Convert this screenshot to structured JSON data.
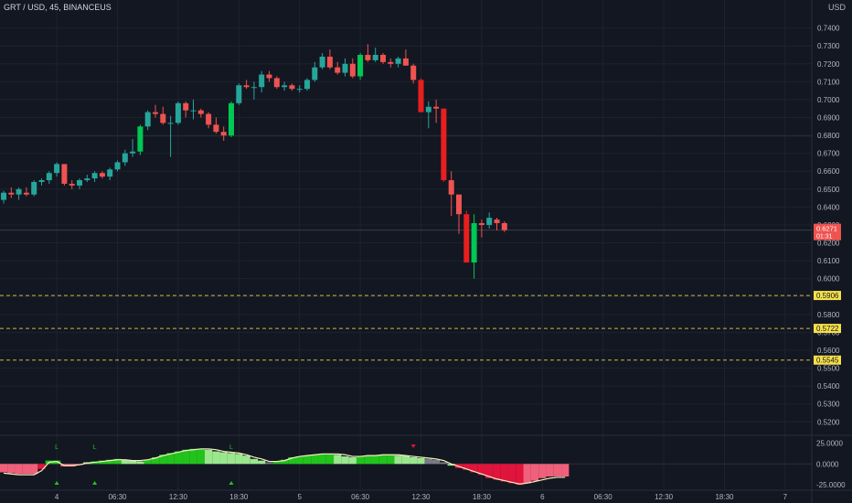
{
  "header": {
    "title": "GRT / USD, 45, BINANCEUS",
    "currency": "USD"
  },
  "colors": {
    "background": "#131722",
    "grid": "#1e222d",
    "text": "#b2b5be",
    "up": "#26a69a",
    "down": "#ef5350",
    "up_strong": "#00c853",
    "down_strong": "#e91e1e",
    "level_line": "#f0e442",
    "level_label_bg": "#f5e04a",
    "osc_green": "#22c41c",
    "osc_light_green": "#9be78e",
    "osc_gray": "#787b86",
    "osc_red": "#e0143c",
    "osc_pink": "#f0607a",
    "osc_line": "#f4efbd"
  },
  "chart_data": {
    "type": "candlestick",
    "y_ticks": [
      "0.7400",
      "0.7300",
      "0.7200",
      "0.7100",
      "0.7000",
      "0.6900",
      "0.6800",
      "0.6700",
      "0.6600",
      "0.6500",
      "0.6400",
      "0.6300",
      "0.6200",
      "0.6100",
      "0.6000",
      "0.5900",
      "0.5800",
      "0.5700",
      "0.5600",
      "0.5500",
      "0.5400",
      "0.5300",
      "0.5200"
    ],
    "ylim": [
      0.5135,
      0.7485
    ],
    "x_ticks": [
      {
        "label": "4",
        "bar": 7
      },
      {
        "label": "06:30",
        "bar": 15
      },
      {
        "label": "12:30",
        "bar": 23
      },
      {
        "label": "18:30",
        "bar": 31
      },
      {
        "label": "5",
        "bar": 39
      },
      {
        "label": "06:30",
        "bar": 47
      },
      {
        "label": "12:30",
        "bar": 55
      },
      {
        "label": "18:30",
        "bar": 63
      },
      {
        "label": "6",
        "bar": 71
      },
      {
        "label": "06:30",
        "bar": 79
      },
      {
        "label": "12:30",
        "bar": 87
      },
      {
        "label": "18:30",
        "bar": 95
      },
      {
        "label": "7",
        "bar": 103
      }
    ],
    "last_price": {
      "value": 0.6271,
      "label": "0.6271",
      "countdown": "01:31"
    },
    "levels": [
      {
        "value": 0.5906,
        "label": "0.5906"
      },
      {
        "value": 0.5722,
        "label": "0.5722"
      },
      {
        "value": 0.5545,
        "label": "0.5545"
      }
    ],
    "candles": [
      [
        0.644,
        0.649,
        0.642,
        0.648
      ],
      [
        0.648,
        0.651,
        0.645,
        0.647
      ],
      [
        0.647,
        0.651,
        0.644,
        0.65
      ],
      [
        0.648,
        0.651,
        0.646,
        0.647
      ],
      [
        0.647,
        0.655,
        0.646,
        0.654
      ],
      [
        0.654,
        0.656,
        0.652,
        0.655
      ],
      [
        0.655,
        0.66,
        0.653,
        0.659
      ],
      [
        0.659,
        0.665,
        0.657,
        0.664
      ],
      [
        0.664,
        0.664,
        0.652,
        0.653
      ],
      [
        0.653,
        0.655,
        0.65,
        0.652
      ],
      [
        0.652,
        0.656,
        0.65,
        0.655
      ],
      [
        0.655,
        0.658,
        0.654,
        0.656
      ],
      [
        0.656,
        0.66,
        0.654,
        0.659
      ],
      [
        0.659,
        0.66,
        0.656,
        0.657
      ],
      [
        0.657,
        0.662,
        0.655,
        0.661
      ],
      [
        0.661,
        0.666,
        0.66,
        0.665
      ],
      [
        0.665,
        0.672,
        0.663,
        0.67
      ],
      [
        0.67,
        0.678,
        0.668,
        0.671
      ],
      [
        0.671,
        0.686,
        0.669,
        0.685
      ],
      [
        0.685,
        0.694,
        0.683,
        0.693
      ],
      [
        0.693,
        0.697,
        0.69,
        0.692
      ],
      [
        0.692,
        0.696,
        0.686,
        0.687
      ],
      [
        0.687,
        0.691,
        0.668,
        0.687
      ],
      [
        0.687,
        0.699,
        0.686,
        0.698
      ],
      [
        0.698,
        0.699,
        0.69,
        0.694
      ],
      [
        0.694,
        0.7,
        0.689,
        0.694
      ],
      [
        0.694,
        0.695,
        0.69,
        0.692
      ],
      [
        0.692,
        0.693,
        0.684,
        0.686
      ],
      [
        0.686,
        0.69,
        0.681,
        0.682
      ],
      [
        0.682,
        0.685,
        0.677,
        0.68
      ],
      [
        0.68,
        0.699,
        0.679,
        0.698
      ],
      [
        0.698,
        0.709,
        0.697,
        0.708
      ],
      [
        0.708,
        0.711,
        0.706,
        0.707
      ],
      [
        0.707,
        0.71,
        0.7,
        0.707
      ],
      [
        0.707,
        0.716,
        0.704,
        0.714
      ],
      [
        0.714,
        0.716,
        0.71,
        0.712
      ],
      [
        0.712,
        0.713,
        0.706,
        0.707
      ],
      [
        0.707,
        0.71,
        0.705,
        0.708
      ],
      [
        0.708,
        0.709,
        0.705,
        0.706
      ],
      [
        0.706,
        0.708,
        0.704,
        0.706
      ],
      [
        0.706,
        0.712,
        0.705,
        0.711
      ],
      [
        0.711,
        0.721,
        0.71,
        0.718
      ],
      [
        0.718,
        0.726,
        0.717,
        0.724
      ],
      [
        0.724,
        0.728,
        0.717,
        0.718
      ],
      [
        0.718,
        0.721,
        0.714,
        0.715
      ],
      [
        0.715,
        0.723,
        0.713,
        0.72
      ],
      [
        0.72,
        0.723,
        0.712,
        0.713
      ],
      [
        0.713,
        0.726,
        0.711,
        0.725
      ],
      [
        0.725,
        0.731,
        0.721,
        0.722
      ],
      [
        0.722,
        0.729,
        0.721,
        0.725
      ],
      [
        0.725,
        0.726,
        0.72,
        0.721
      ],
      [
        0.721,
        0.723,
        0.718,
        0.72
      ],
      [
        0.72,
        0.724,
        0.718,
        0.723
      ],
      [
        0.723,
        0.728,
        0.719,
        0.719
      ],
      [
        0.719,
        0.72,
        0.709,
        0.711
      ],
      [
        0.711,
        0.712,
        0.693,
        0.693
      ],
      [
        0.693,
        0.699,
        0.684,
        0.696
      ],
      [
        0.696,
        0.7,
        0.687,
        0.695
      ],
      [
        0.695,
        0.695,
        0.654,
        0.655
      ],
      [
        0.655,
        0.66,
        0.635,
        0.647
      ],
      [
        0.647,
        0.647,
        0.625,
        0.636
      ],
      [
        0.636,
        0.638,
        0.609,
        0.609
      ],
      [
        0.609,
        0.636,
        0.6,
        0.631
      ],
      [
        0.631,
        0.633,
        0.623,
        0.63
      ],
      [
        0.63,
        0.637,
        0.628,
        0.634
      ],
      [
        0.633,
        0.634,
        0.627,
        0.631
      ],
      [
        0.631,
        0.632,
        0.626,
        0.6271
      ]
    ],
    "oscillator": {
      "ylim": [
        -27,
        32
      ],
      "y_ticks": [
        "25.0000",
        "0.0000",
        "-25.0000"
      ],
      "values": [
        -10,
        -11,
        -12,
        -12,
        -12,
        -6,
        4,
        4,
        -3,
        -3,
        -1,
        2,
        3,
        4,
        5,
        6,
        5,
        4,
        3,
        5,
        8,
        11,
        13,
        15,
        17,
        18,
        18,
        17,
        15,
        14,
        13,
        12,
        10,
        6,
        4,
        2,
        3,
        5,
        8,
        9,
        10,
        11,
        12,
        12,
        11,
        9,
        8,
        9,
        10,
        10,
        11,
        11,
        10,
        10,
        8,
        7,
        6,
        5,
        2,
        -2,
        -5,
        -7,
        -10,
        -13,
        -17,
        -19,
        -21,
        -23,
        -25,
        -23,
        -20,
        -17,
        -15,
        -15,
        -15
      ],
      "line": [
        -11,
        -12,
        -13,
        -13,
        -13,
        -8,
        2,
        3,
        -2,
        -2,
        -1,
        1,
        2,
        3,
        4,
        5,
        5,
        4,
        4,
        5,
        7,
        10,
        12,
        14,
        16,
        17,
        18,
        18,
        17,
        15,
        14,
        13,
        11,
        8,
        6,
        3,
        3,
        4,
        7,
        9,
        10,
        11,
        12,
        12,
        12,
        11,
        9,
        9,
        10,
        10,
        11,
        11,
        11,
        10,
        9,
        8,
        7,
        6,
        4,
        0,
        -3,
        -6,
        -9,
        -12,
        -15,
        -18,
        -20,
        -22,
        -24,
        -23,
        -21,
        -19,
        -17,
        -16,
        -16
      ],
      "colors": [
        "pink",
        "pink",
        "pink",
        "pink",
        "pink",
        "red",
        "green",
        "green",
        "pink",
        "pink",
        "pink",
        "light",
        "green",
        "green",
        "green",
        "green",
        "light",
        "light",
        "light",
        "green",
        "green",
        "green",
        "green",
        "green",
        "green",
        "green",
        "green",
        "light",
        "light",
        "light",
        "light",
        "light",
        "light",
        "light",
        "light",
        "gray",
        "green",
        "green",
        "green",
        "green",
        "green",
        "green",
        "green",
        "green",
        "light",
        "light",
        "light",
        "green",
        "green",
        "green",
        "green",
        "green",
        "light",
        "light",
        "light",
        "light",
        "gray",
        "gray",
        "gray",
        "light",
        "red",
        "red",
        "red",
        "red",
        "red",
        "red",
        "red",
        "red",
        "red",
        "pink",
        "pink",
        "pink",
        "pink",
        "pink",
        "pink"
      ],
      "markers": [
        {
          "bar": 7,
          "label": "L",
          "type": "long"
        },
        {
          "bar": 12,
          "label": "L",
          "type": "long"
        },
        {
          "bar": 30,
          "label": "L",
          "type": "long"
        },
        {
          "bar": 54,
          "label": "",
          "type": "short"
        }
      ]
    }
  }
}
